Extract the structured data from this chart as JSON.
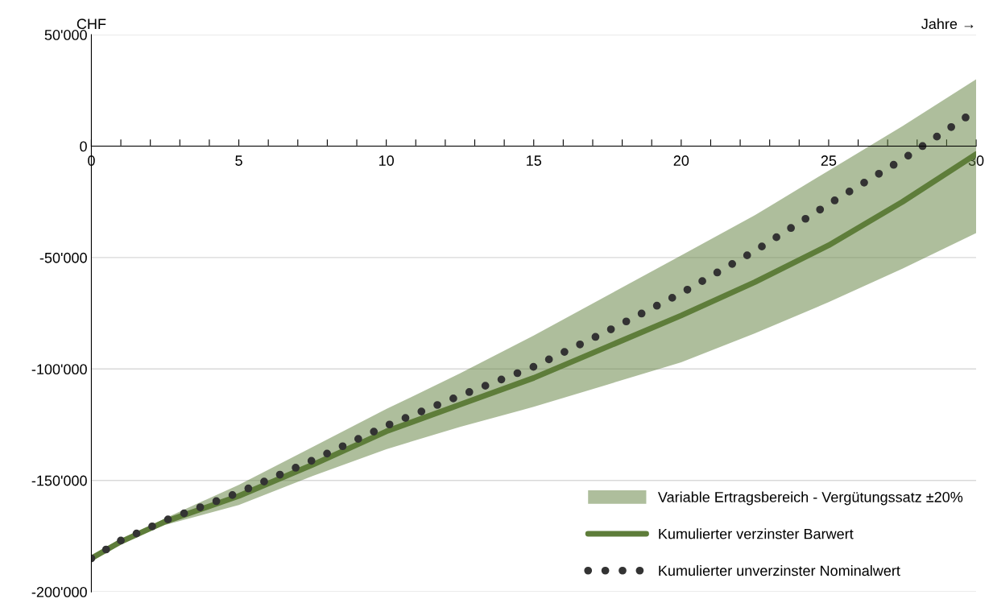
{
  "chart_data": {
    "type": "line",
    "xlabel": "Jahre →",
    "ylabel": "CHF",
    "x": [
      0,
      1,
      2.5,
      5,
      7.5,
      10,
      12.5,
      15,
      17.5,
      20,
      22.5,
      25,
      27.5,
      30
    ],
    "series": [
      {
        "name": "Kumulierter verzinster Barwert",
        "type": "line",
        "color": "#5e7d3a",
        "line_style": "solid",
        "values": [
          -185000,
          -177500,
          -168500,
          -157000,
          -143000,
          -128000,
          -116000,
          -104000,
          -90000,
          -76000,
          -61000,
          -44500,
          -25000,
          -3600
        ],
        "lower": [
          -185000,
          -178000,
          -170000,
          -161000,
          -148000,
          -136000,
          -126000,
          -117000,
          -107000,
          -97000,
          -84000,
          -70000,
          -55000,
          -39000
        ],
        "upper": [
          -185000,
          -177000,
          -167000,
          -152000,
          -135000,
          -118000,
          -102000,
          -85000,
          -67000,
          -49000,
          -31000,
          -11000,
          9000,
          30000
        ]
      },
      {
        "name": "Kumulierter unverzinster Nominalwert",
        "type": "line",
        "color": "#333333",
        "line_style": "dotted",
        "values": [
          -185000,
          -177000,
          -168000,
          -155500,
          -141000,
          -125500,
          -112000,
          -99000,
          -83000,
          -66000,
          -47000,
          -26000,
          -6000,
          16000
        ]
      }
    ],
    "annotations": [
      "Variable Ertragsbereich - Vergütungssatz ±20%"
    ],
    "xlim": [
      0,
      30
    ],
    "xticks": [
      0,
      {
        "value": 1,
        "label": null
      },
      {
        "value": 2,
        "label": null
      },
      {
        "value": 3,
        "label": null
      },
      {
        "value": 4,
        "label": null
      },
      5,
      {
        "value": 6,
        "label": null
      },
      {
        "value": 7,
        "label": null
      },
      {
        "value": 8,
        "label": null
      },
      {
        "value": 9,
        "label": null
      },
      10,
      {
        "value": 11,
        "label": null
      },
      {
        "value": 12,
        "label": null
      },
      {
        "value": 13,
        "label": null
      },
      {
        "value": 14,
        "label": null
      },
      15,
      {
        "value": 16,
        "label": null
      },
      {
        "value": 17,
        "label": null
      },
      {
        "value": 18,
        "label": null
      },
      {
        "value": 19,
        "label": null
      },
      20,
      {
        "value": 21,
        "label": null
      },
      {
        "value": 22,
        "label": null
      },
      {
        "value": 23,
        "label": null
      },
      {
        "value": 24,
        "label": null
      },
      25,
      {
        "value": 26,
        "label": null
      },
      {
        "value": 27,
        "label": null
      },
      {
        "value": 28,
        "label": null
      },
      {
        "value": 29,
        "label": null
      },
      30
    ],
    "ylim": [
      -200000,
      50000
    ],
    "yticks": [
      {
        "value": -200000,
        "label": "-200'000"
      },
      {
        "value": -150000,
        "label": "-150'000"
      },
      {
        "value": -100000,
        "label": "-100'000"
      },
      {
        "value": -50000,
        "label": "-50'000"
      },
      0,
      {
        "value": 50000,
        "label": "50'000"
      }
    ],
    "grid": "y",
    "legend": "bottom right"
  }
}
